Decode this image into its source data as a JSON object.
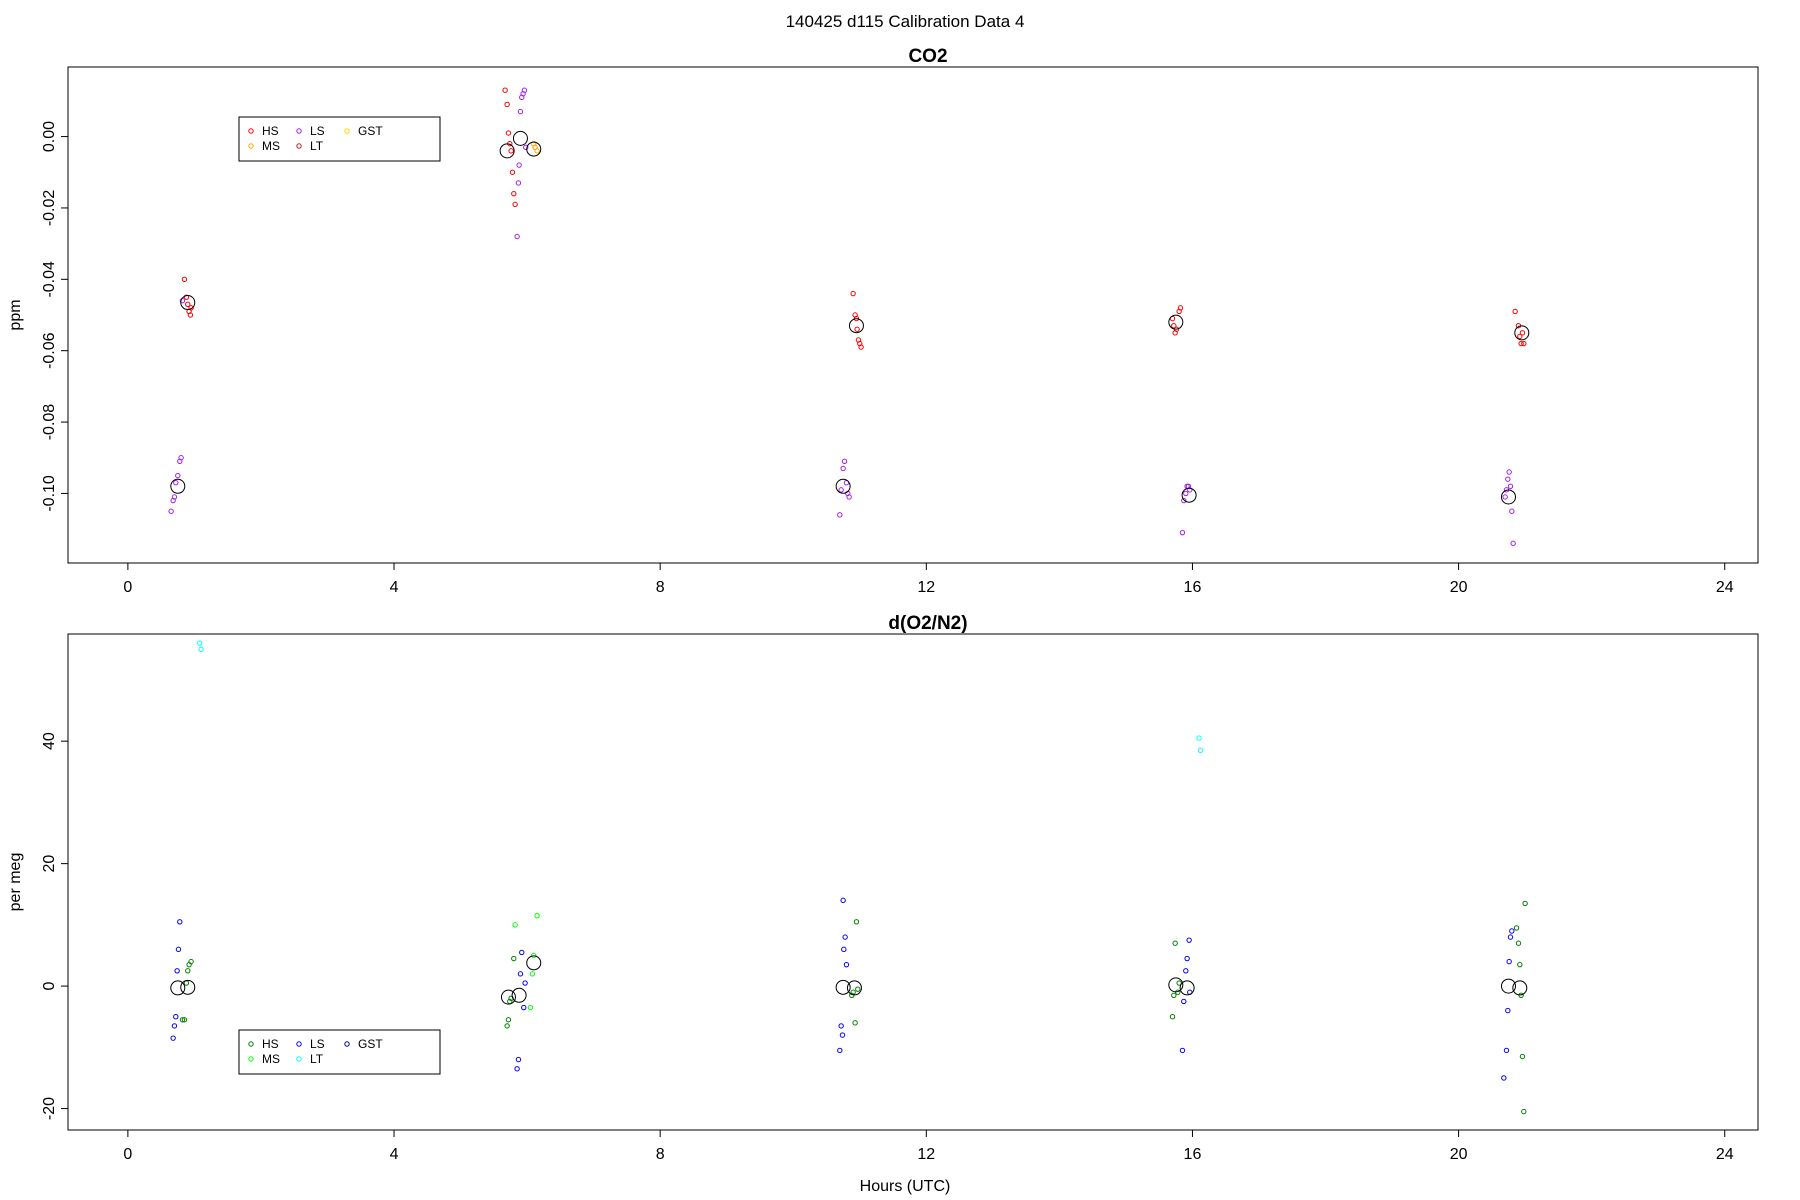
{
  "figure_title": "140425   d115   Calibration Data 4",
  "chart_data": [
    {
      "type": "scatter",
      "title": "CO2",
      "xlabel": "",
      "ylabel": "ppm",
      "xlim": [
        -0.9,
        24.5
      ],
      "ylim": [
        -0.1195,
        0.0195
      ],
      "x_ticks": [
        "0",
        "4",
        "8",
        "12",
        "16",
        "20",
        "24"
      ],
      "y_ticks": [
        "0.00",
        "-0.02",
        "-0.04",
        "-0.06",
        "-0.08",
        "-0.10"
      ],
      "legend": {
        "position": "top-left",
        "entries": [
          {
            "label": "HS",
            "color": "#ff0000"
          },
          {
            "label": "MS",
            "color": "#ffa500"
          },
          {
            "label": "LS",
            "color": "#a020f0"
          },
          {
            "label": "LT",
            "color": "#b22222"
          },
          {
            "label": "GST",
            "color": "#ffd700"
          }
        ]
      },
      "series": [
        {
          "name": "HS",
          "color": "#ff0000",
          "points": [
            [
              0.85,
              -0.04
            ],
            [
              0.88,
              -0.045
            ],
            [
              0.9,
              -0.047
            ],
            [
              0.92,
              -0.049
            ],
            [
              0.94,
              -0.05
            ],
            [
              0.95,
              -0.048
            ],
            [
              5.67,
              0.013
            ],
            [
              5.7,
              0.009
            ],
            [
              5.72,
              0.001
            ],
            [
              5.74,
              -0.002
            ],
            [
              5.76,
              -0.004
            ],
            [
              5.78,
              -0.01
            ],
            [
              5.8,
              -0.016
            ],
            [
              5.82,
              -0.019
            ],
            [
              10.9,
              -0.044
            ],
            [
              10.93,
              -0.05
            ],
            [
              10.95,
              -0.051
            ],
            [
              10.96,
              -0.054
            ],
            [
              10.98,
              -0.057
            ],
            [
              11.0,
              -0.058
            ],
            [
              11.02,
              -0.059
            ],
            [
              15.7,
              -0.051
            ],
            [
              15.72,
              -0.053
            ],
            [
              15.74,
              -0.055
            ],
            [
              15.76,
              -0.054
            ],
            [
              15.8,
              -0.049
            ],
            [
              15.82,
              -0.048
            ],
            [
              20.85,
              -0.049
            ],
            [
              20.9,
              -0.053
            ],
            [
              20.92,
              -0.056
            ],
            [
              20.94,
              -0.058
            ],
            [
              20.96,
              -0.055
            ],
            [
              20.98,
              -0.058
            ]
          ]
        },
        {
          "name": "MS",
          "color": "#ffa500",
          "points": [
            [
              6.1,
              -0.002
            ],
            [
              6.12,
              -0.003
            ],
            [
              6.15,
              -0.004
            ]
          ]
        },
        {
          "name": "LS",
          "color": "#a020f0",
          "points": [
            [
              0.65,
              -0.105
            ],
            [
              0.68,
              -0.102
            ],
            [
              0.7,
              -0.101
            ],
            [
              0.72,
              -0.097
            ],
            [
              0.75,
              -0.095
            ],
            [
              0.78,
              -0.091
            ],
            [
              0.8,
              -0.09
            ],
            [
              0.82,
              -0.046
            ],
            [
              5.85,
              -0.028
            ],
            [
              5.87,
              -0.013
            ],
            [
              5.88,
              -0.008
            ],
            [
              5.9,
              0.007
            ],
            [
              5.92,
              0.011
            ],
            [
              5.94,
              0.012
            ],
            [
              5.96,
              0.013
            ],
            [
              5.98,
              -0.003
            ],
            [
              10.7,
              -0.106
            ],
            [
              10.72,
              -0.099
            ],
            [
              10.75,
              -0.093
            ],
            [
              10.77,
              -0.091
            ],
            [
              10.8,
              -0.097
            ],
            [
              10.82,
              -0.1
            ],
            [
              10.84,
              -0.101
            ],
            [
              15.85,
              -0.111
            ],
            [
              15.87,
              -0.102
            ],
            [
              15.9,
              -0.1
            ],
            [
              15.92,
              -0.098
            ],
            [
              15.94,
              -0.098
            ],
            [
              15.96,
              -0.099
            ],
            [
              20.7,
              -0.101
            ],
            [
              20.72,
              -0.099
            ],
            [
              20.74,
              -0.096
            ],
            [
              20.76,
              -0.094
            ],
            [
              20.78,
              -0.098
            ],
            [
              20.8,
              -0.105
            ],
            [
              20.82,
              -0.114
            ]
          ]
        }
      ],
      "means": [
        [
          0.75,
          -0.098
        ],
        [
          0.9,
          -0.0465
        ],
        [
          5.7,
          -0.004
        ],
        [
          5.9,
          -0.0005
        ],
        [
          6.1,
          -0.0035
        ],
        [
          10.75,
          -0.098
        ],
        [
          10.95,
          -0.053
        ],
        [
          15.75,
          -0.052
        ],
        [
          15.95,
          -0.1005
        ],
        [
          20.75,
          -0.101
        ],
        [
          20.95,
          -0.055
        ]
      ]
    },
    {
      "type": "scatter",
      "title": "d(O2/N2)",
      "xlabel": "Hours (UTC)",
      "ylabel": "per meg",
      "xlim": [
        -0.9,
        24.5
      ],
      "ylim": [
        -23.5,
        57.5
      ],
      "x_ticks": [
        "0",
        "4",
        "8",
        "12",
        "16",
        "20",
        "24"
      ],
      "y_ticks": [
        "40",
        "20",
        "0",
        "-20"
      ],
      "legend": {
        "position": "bottom-left",
        "entries": [
          {
            "label": "HS",
            "color": "#008000"
          },
          {
            "label": "MS",
            "color": "#00ff00"
          },
          {
            "label": "LS",
            "color": "#0000ff"
          },
          {
            "label": "LT",
            "color": "#00ffff"
          },
          {
            "label": "GST",
            "color": "#00008b"
          }
        ]
      },
      "series": [
        {
          "name": "HS",
          "color": "#008000",
          "points": [
            [
              0.82,
              -5.5
            ],
            [
              0.85,
              -5.5
            ],
            [
              0.88,
              0.5
            ],
            [
              0.9,
              2.5
            ],
            [
              0.92,
              3.5
            ],
            [
              0.95,
              4.0
            ],
            [
              5.7,
              -6.5
            ],
            [
              5.72,
              -5.5
            ],
            [
              5.74,
              -2.5
            ],
            [
              5.76,
              -2.0
            ],
            [
              5.8,
              4.5
            ],
            [
              10.88,
              -1.5
            ],
            [
              10.9,
              -1.0
            ],
            [
              10.93,
              -6.0
            ],
            [
              10.95,
              10.5
            ],
            [
              10.97,
              -0.5
            ],
            [
              15.7,
              -5.0
            ],
            [
              15.72,
              -1.5
            ],
            [
              15.74,
              7.0
            ],
            [
              15.78,
              -1.0
            ],
            [
              15.8,
              0.5
            ],
            [
              20.87,
              9.5
            ],
            [
              20.9,
              7.0
            ],
            [
              20.92,
              3.5
            ],
            [
              20.94,
              -1.5
            ],
            [
              20.96,
              -11.5
            ],
            [
              20.98,
              -20.5
            ],
            [
              21.0,
              13.5
            ]
          ]
        },
        {
          "name": "MS",
          "color": "#00ff00",
          "points": [
            [
              5.82,
              10.0
            ],
            [
              6.05,
              -3.5
            ],
            [
              6.08,
              2.0
            ],
            [
              6.1,
              5.0
            ],
            [
              6.15,
              11.5
            ]
          ]
        },
        {
          "name": "LS",
          "color": "#0000ff",
          "points": [
            [
              0.68,
              -8.5
            ],
            [
              0.7,
              -6.5
            ],
            [
              0.72,
              -5.0
            ],
            [
              0.74,
              2.5
            ],
            [
              0.76,
              6.0
            ],
            [
              0.78,
              10.5
            ],
            [
              5.85,
              -13.5
            ],
            [
              5.87,
              -12.0
            ],
            [
              5.9,
              2.0
            ],
            [
              5.92,
              5.5
            ],
            [
              5.95,
              -3.5
            ],
            [
              5.97,
              0.5
            ],
            [
              10.7,
              -10.5
            ],
            [
              10.72,
              -6.5
            ],
            [
              10.74,
              -8.0
            ],
            [
              10.76,
              6.0
            ],
            [
              10.78,
              8.0
            ],
            [
              10.8,
              3.5
            ],
            [
              10.75,
              14.0
            ],
            [
              15.85,
              -10.5
            ],
            [
              15.87,
              -2.5
            ],
            [
              15.9,
              2.5
            ],
            [
              15.92,
              4.5
            ],
            [
              15.95,
              7.5
            ],
            [
              15.96,
              -1.0
            ],
            [
              20.68,
              -15.0
            ],
            [
              20.72,
              -10.5
            ],
            [
              20.74,
              -4.0
            ],
            [
              20.76,
              4.0
            ],
            [
              20.78,
              8.0
            ],
            [
              20.8,
              9.0
            ]
          ]
        },
        {
          "name": "LT",
          "color": "#00ffff",
          "points": [
            [
              1.08,
              56.0
            ],
            [
              1.1,
              55.0
            ],
            [
              16.1,
              40.5
            ],
            [
              16.12,
              38.5
            ]
          ]
        }
      ],
      "means": [
        [
          0.75,
          -0.3
        ],
        [
          0.9,
          -0.2
        ],
        [
          5.72,
          -1.8
        ],
        [
          5.88,
          -1.5
        ],
        [
          6.1,
          3.8
        ],
        [
          10.75,
          -0.2
        ],
        [
          10.92,
          -0.3
        ],
        [
          15.75,
          0.2
        ],
        [
          15.92,
          -0.3
        ],
        [
          20.75,
          0.0
        ],
        [
          20.92,
          -0.3
        ]
      ]
    }
  ]
}
